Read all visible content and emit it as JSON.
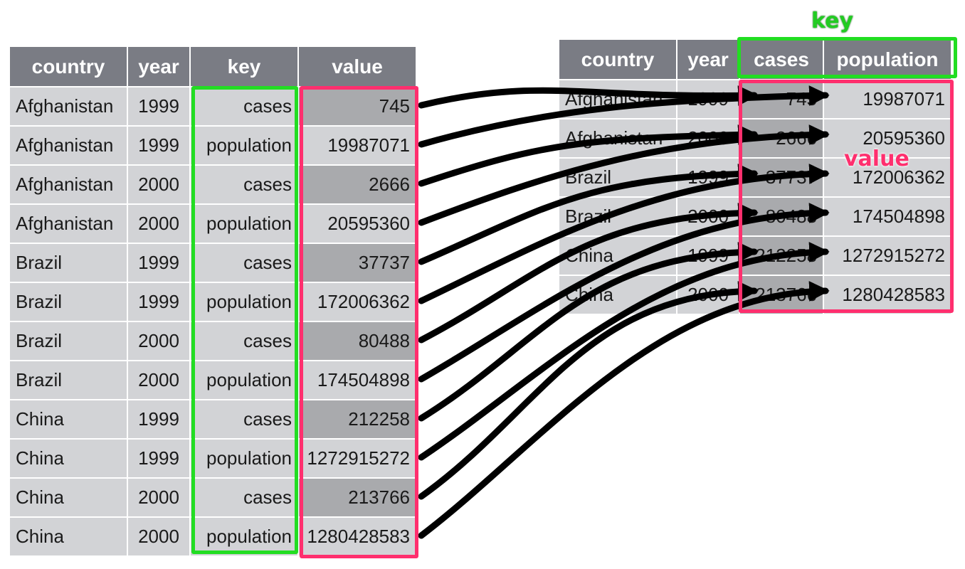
{
  "tidy_table": {
    "headers": [
      "country",
      "year",
      "key",
      "value"
    ],
    "rows": [
      [
        "Afghanistan",
        "1999",
        "cases",
        "745"
      ],
      [
        "Afghanistan",
        "1999",
        "population",
        "19987071"
      ],
      [
        "Afghanistan",
        "2000",
        "cases",
        "2666"
      ],
      [
        "Afghanistan",
        "2000",
        "population",
        "20595360"
      ],
      [
        "Brazil",
        "1999",
        "cases",
        "37737"
      ],
      [
        "Brazil",
        "1999",
        "population",
        "172006362"
      ],
      [
        "Brazil",
        "2000",
        "cases",
        "80488"
      ],
      [
        "Brazil",
        "2000",
        "population",
        "174504898"
      ],
      [
        "China",
        "1999",
        "cases",
        "212258"
      ],
      [
        "China",
        "1999",
        "population",
        "1272915272"
      ],
      [
        "China",
        "2000",
        "cases",
        "213766"
      ],
      [
        "China",
        "2000",
        "population",
        "1280428583"
      ]
    ]
  },
  "wide_table": {
    "headers": [
      "country",
      "year",
      "cases",
      "population"
    ],
    "rows": [
      [
        "Afghanistan",
        "1999",
        "745",
        "19987071"
      ],
      [
        "Afghanistan",
        "2000",
        "2666",
        "20595360"
      ],
      [
        "Brazil",
        "1999",
        "37737",
        "172006362"
      ],
      [
        "Brazil",
        "2000",
        "80488",
        "174504898"
      ],
      [
        "China",
        "1999",
        "212258",
        "1272915272"
      ],
      [
        "China",
        "2000",
        "213766",
        "1280428583"
      ]
    ]
  },
  "labels": {
    "key": "key",
    "value": "value"
  },
  "colors": {
    "header_bg": "#7a7c84",
    "cell_bg": "#d2d3d6",
    "cell_dark_bg": "#a9aaad",
    "key_highlight": "#22dd22",
    "value_highlight": "#ff2f6e",
    "arrow": "#000000"
  }
}
